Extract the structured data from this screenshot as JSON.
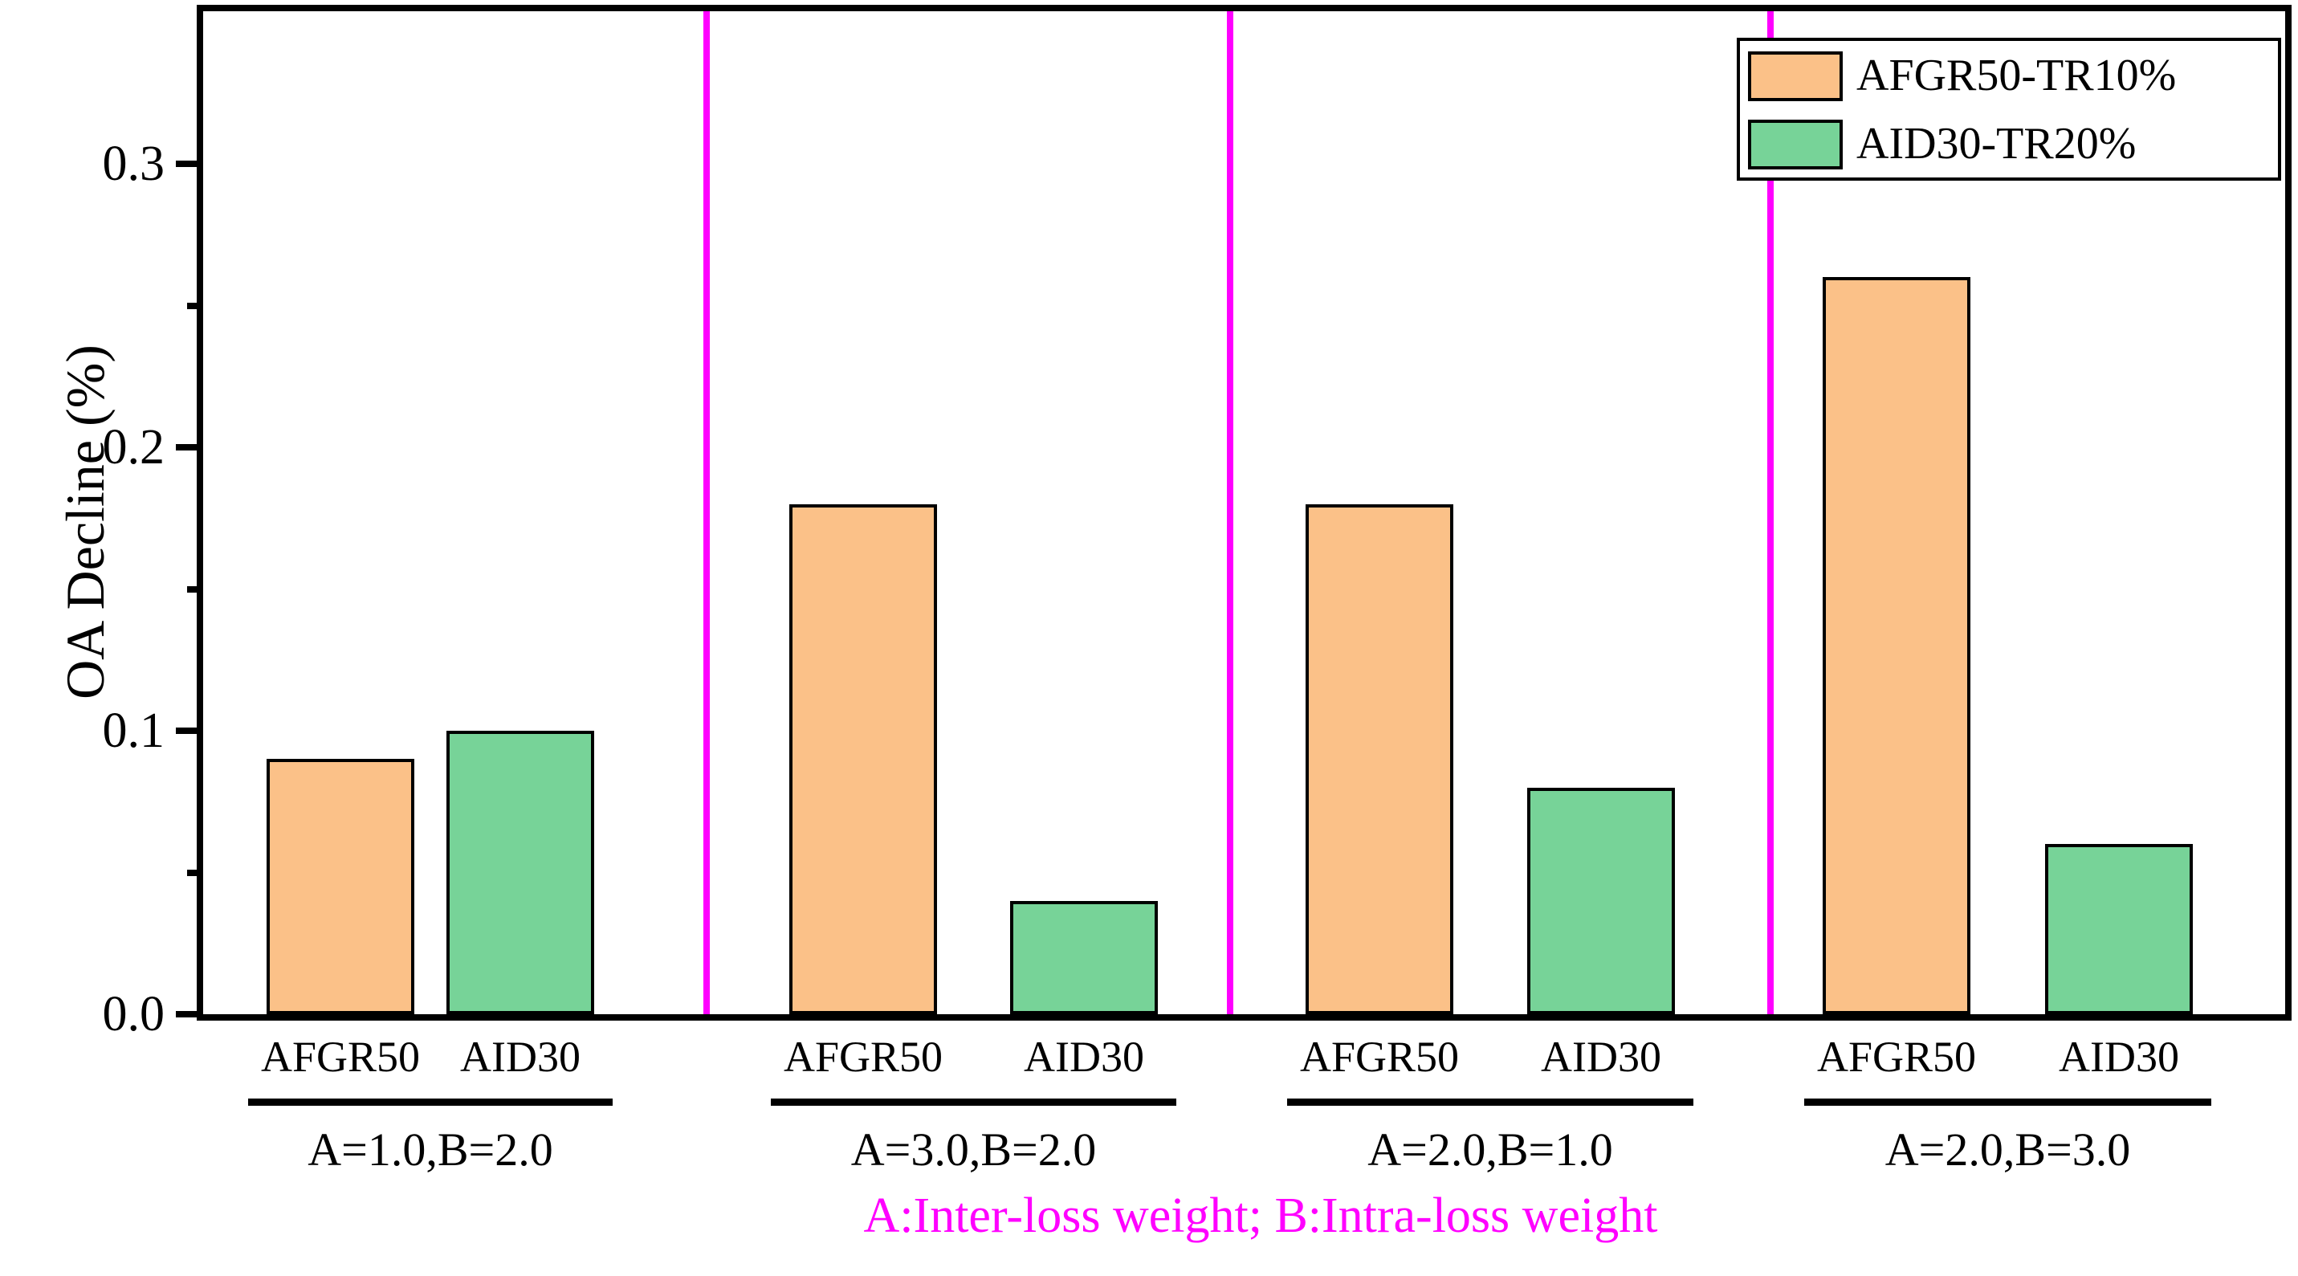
{
  "chart_data": {
    "type": "bar",
    "title": "",
    "xlabel": "",
    "ylabel": "OA Decline (%)",
    "ylim": [
      0,
      0.354
    ],
    "grid": false,
    "yticks": {
      "major": [
        {
          "value": 0.0,
          "label": "0.0"
        },
        {
          "value": 0.1,
          "label": "0.1"
        },
        {
          "value": 0.2,
          "label": "0.2"
        },
        {
          "value": 0.3,
          "label": "0.3"
        }
      ],
      "minor": [
        0.05,
        0.15,
        0.25
      ]
    },
    "groups": [
      {
        "label": "A=1.0,B=2.0",
        "bars": [
          {
            "category": "AFGR50",
            "series": "AFGR50-TR10%",
            "value": 0.09
          },
          {
            "category": "AID30",
            "series": "AID30-TR20%",
            "value": 0.1
          }
        ]
      },
      {
        "label": "A=3.0,B=2.0",
        "bars": [
          {
            "category": "AFGR50",
            "series": "AFGR50-TR10%",
            "value": 0.18
          },
          {
            "category": "AID30",
            "series": "AID30-TR20%",
            "value": 0.04
          }
        ]
      },
      {
        "label": "A=2.0,B=1.0",
        "bars": [
          {
            "category": "AFGR50",
            "series": "AFGR50-TR10%",
            "value": 0.18
          },
          {
            "category": "AID30",
            "series": "AID30-TR20%",
            "value": 0.08
          }
        ]
      },
      {
        "label": "A=2.0,B=3.0",
        "bars": [
          {
            "category": "AFGR50",
            "series": "AFGR50-TR10%",
            "value": 0.26
          },
          {
            "category": "AID30",
            "series": "AID30-TR20%",
            "value": 0.06
          }
        ]
      }
    ],
    "legend": {
      "position": "top-right",
      "items": [
        {
          "label": "AFGR50-TR10%",
          "color": "#FBC188"
        },
        {
          "label": "AID30-TR20%",
          "color": "#77D398"
        }
      ]
    },
    "colors": {
      "bar_border": "#000000",
      "axis": "#000000",
      "divider": "#FF00FF"
    },
    "annotation": {
      "text": "A:Inter-loss weight; B:Intra-loss weight",
      "color": "#FF00FF"
    }
  }
}
